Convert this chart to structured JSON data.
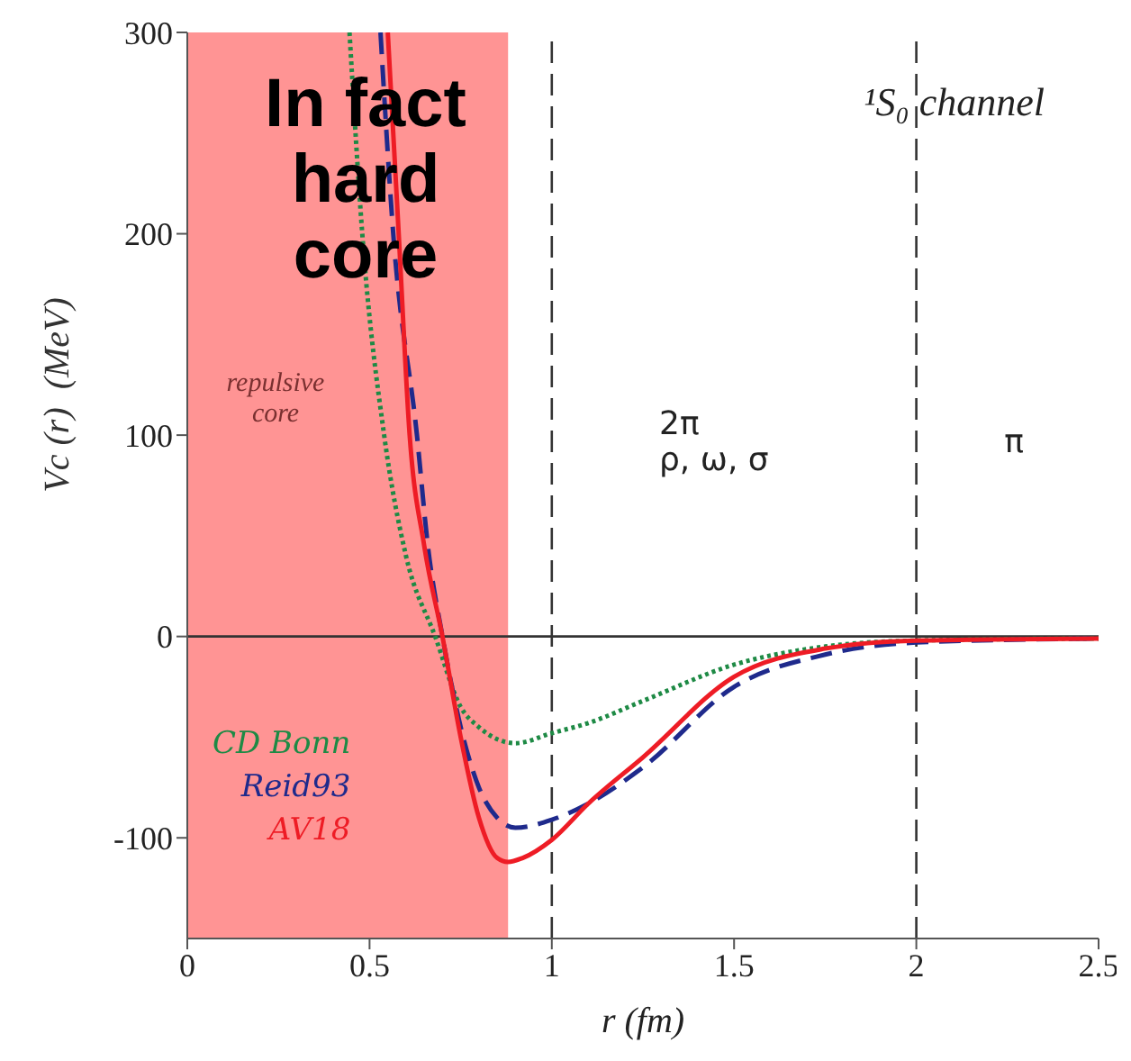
{
  "chart_data": {
    "type": "line",
    "title": "¹S₀ channel",
    "xlabel": "r (fm)",
    "ylabel": "Vc (r)  (MeV)",
    "xlim": [
      0,
      2.5
    ],
    "xticks": [
      0,
      0.5,
      1,
      1.5,
      2,
      2.5
    ],
    "ylim": [
      -150,
      300
    ],
    "yticks": [
      -100,
      0,
      100,
      200,
      300
    ],
    "grid": false,
    "legend": "bottom left",
    "marker": "none",
    "series": [
      {
        "name": "CD Bonn",
        "color": "#1e8a45",
        "line_style": "dotted",
        "x": [
          0.445,
          0.48,
          0.54,
          0.6,
          0.68,
          0.75,
          0.8,
          0.9,
          1.0,
          1.1,
          1.25,
          1.5,
          1.75,
          2.0,
          2.5
        ],
        "values": [
          300,
          200,
          100,
          40,
          0,
          -35,
          -45,
          -53,
          -48,
          -43,
          -32,
          -14,
          -5,
          -2,
          -1
        ]
      },
      {
        "name": "Reid93",
        "color": "#1f2a8c",
        "line_style": "dashed",
        "x": [
          0.53,
          0.565,
          0.63,
          0.66,
          0.7,
          0.75,
          0.8,
          0.85,
          0.9,
          1.0,
          1.1,
          1.25,
          1.5,
          1.75,
          2.0,
          2.5
        ],
        "values": [
          300,
          200,
          100,
          45,
          0,
          -45,
          -75,
          -90,
          -95,
          -91,
          -83,
          -65,
          -25,
          -9,
          -3,
          -1
        ]
      },
      {
        "name": "AV18",
        "color": "#ee1c25",
        "line_style": "solid",
        "x": [
          0.55,
          0.58,
          0.61,
          0.65,
          0.7,
          0.75,
          0.8,
          0.85,
          0.88,
          0.92,
          1.0,
          1.1,
          1.25,
          1.5,
          1.75,
          2.0,
          2.5
        ],
        "values": [
          300,
          200,
          100,
          45,
          0,
          -50,
          -90,
          -110,
          -112,
          -110,
          -101,
          -83,
          -60,
          -20,
          -6,
          -2,
          -1
        ]
      }
    ],
    "ref_lines": [
      {
        "axis": "y",
        "value": 0,
        "color": "#333333",
        "line_style": "solid"
      },
      {
        "axis": "x",
        "value": 1,
        "color": "#333333",
        "line_style": "dashed"
      },
      {
        "axis": "x",
        "value": 2,
        "color": "#333333",
        "line_style": "dashed"
      }
    ],
    "bands": [
      {
        "axis": "x",
        "from": 0,
        "to": 0.88,
        "color": "#ff4d4d"
      }
    ],
    "annotations": [
      "In fact\nhard\ncore",
      "repulsive\ncore",
      "2π\nρ, ω, σ",
      "π"
    ]
  }
}
